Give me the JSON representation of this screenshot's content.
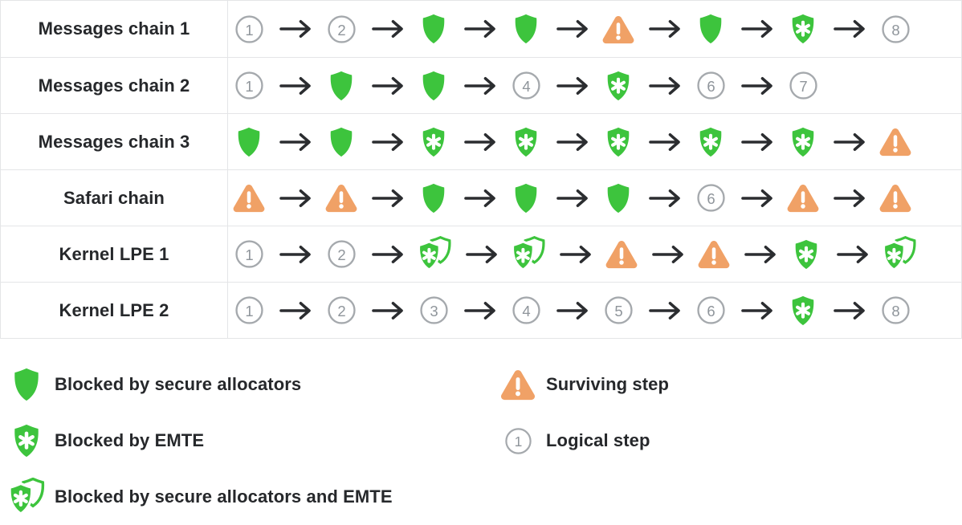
{
  "colors": {
    "green": "#3dc43d",
    "orange": "#f0a166",
    "white": "#ffffff",
    "circle_ring": "#a5a9ad",
    "circle_text": "#8f959b",
    "arrow": "#2b2d30",
    "border": "#e4e5e7",
    "label_text": "#26282b"
  },
  "icons": {
    "alloc": {
      "name": "secure-allocators-shield-icon",
      "shape": "green-shield"
    },
    "emte": {
      "name": "emte-shield-icon",
      "shape": "green-shield-asterisk"
    },
    "both": {
      "name": "allocators-and-emte-shield-icon",
      "shape": "stacked-green-shields-asterisk"
    },
    "surv": {
      "name": "surviving-step-warning-icon",
      "shape": "orange-warning-triangle"
    },
    "num": {
      "name": "logical-step-icon",
      "shape": "gray-numbered-circle"
    },
    "arrow": {
      "name": "arrow-icon",
      "shape": "right-arrow"
    }
  },
  "table": {
    "rows": [
      {
        "label": "Messages chain 1",
        "steps": [
          "num:1",
          "num:2",
          "alloc",
          "alloc",
          "surv",
          "alloc",
          "emte",
          "num:8"
        ]
      },
      {
        "label": "Messages chain 2",
        "steps": [
          "num:1",
          "alloc",
          "alloc",
          "num:4",
          "emte",
          "num:6",
          "num:7"
        ]
      },
      {
        "label": "Messages chain 3",
        "steps": [
          "alloc",
          "alloc",
          "emte",
          "emte",
          "emte",
          "emte",
          "emte",
          "surv"
        ]
      },
      {
        "label": "Safari chain",
        "steps": [
          "surv",
          "surv",
          "alloc",
          "alloc",
          "alloc",
          "num:6",
          "surv",
          "surv"
        ]
      },
      {
        "label": "Kernel LPE 1",
        "steps": [
          "num:1",
          "num:2",
          "both",
          "both",
          "surv",
          "surv",
          "emte",
          "both"
        ]
      },
      {
        "label": "Kernel LPE 2",
        "steps": [
          "num:1",
          "num:2",
          "num:3",
          "num:4",
          "num:5",
          "num:6",
          "emte",
          "num:8"
        ]
      }
    ]
  },
  "legend": {
    "left": [
      {
        "icon": "alloc",
        "label": "Blocked by secure allocators"
      },
      {
        "icon": "emte",
        "label": "Blocked by EMTE"
      },
      {
        "icon": "both",
        "label": "Blocked by secure allocators and EMTE"
      }
    ],
    "right": [
      {
        "icon": "surv",
        "label": "Surviving step"
      },
      {
        "icon": "num:1",
        "label": "Logical step"
      }
    ]
  }
}
